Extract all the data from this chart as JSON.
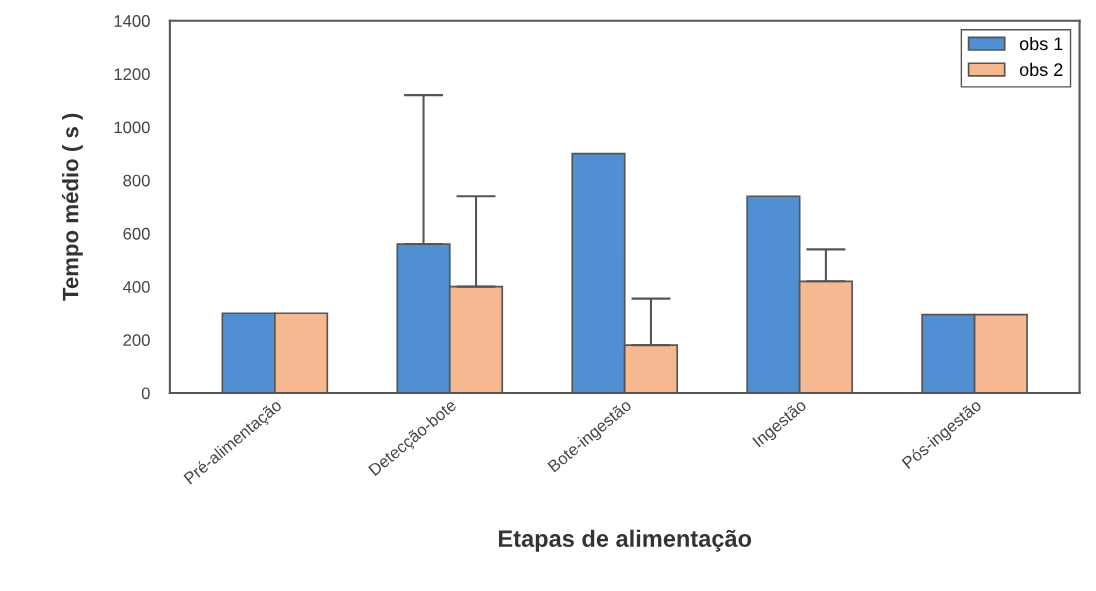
{
  "chart_data": {
    "type": "bar",
    "xlabel": "Etapas de alimentação",
    "ylabel": "Tempo médio ( s )",
    "categories": [
      "Pré-alimentação",
      "Detecção-bote",
      "Bote-ingestão",
      "Ingestão",
      "Pós-ingestão"
    ],
    "series": [
      {
        "name": "obs 1",
        "color": "#4f8fd2",
        "values": [
          300,
          560,
          900,
          740,
          295
        ],
        "errors": [
          null,
          [
            560,
            1120
          ],
          null,
          null,
          null
        ]
      },
      {
        "name": "obs 2",
        "color": "#f5b890",
        "values": [
          300,
          400,
          180,
          420,
          295
        ],
        "errors": [
          null,
          [
            400,
            740
          ],
          [
            180,
            355
          ],
          [
            420,
            540
          ],
          null
        ]
      }
    ],
    "ylim": [
      0,
      1400
    ],
    "yticks": [
      0,
      200,
      400,
      600,
      800,
      1000,
      1200,
      1400
    ],
    "grid": false,
    "legend": "top right"
  }
}
